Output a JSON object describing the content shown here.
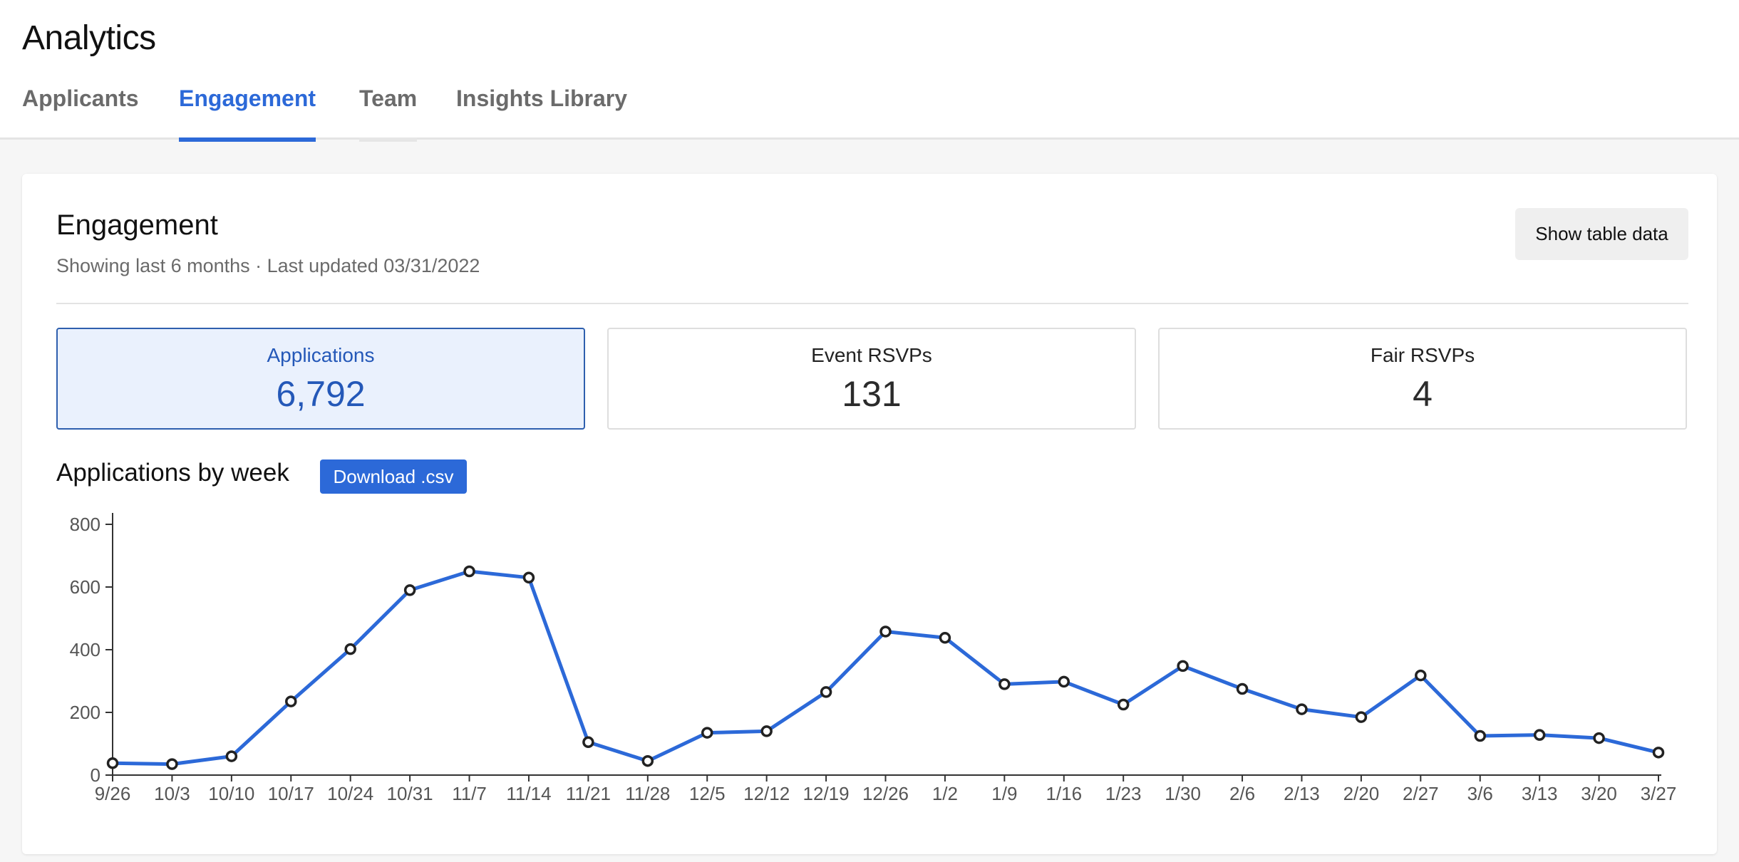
{
  "app": {
    "title": "Analytics"
  },
  "tabs": [
    {
      "label": "Applicants",
      "state": "default"
    },
    {
      "label": "Engagement",
      "state": "active"
    },
    {
      "label": "Team",
      "state": "hover"
    },
    {
      "label": "Insights Library",
      "state": "default"
    }
  ],
  "engagement": {
    "title": "Engagement",
    "subtitle": "Showing last 6 months · Last updated 03/31/2022",
    "show_table_label": "Show table data"
  },
  "stats": [
    {
      "label": "Applications",
      "value": "6,792",
      "selected": true
    },
    {
      "label": "Event RSVPs",
      "value": "131",
      "selected": false
    },
    {
      "label": "Fair RSVPs",
      "value": "4",
      "selected": false
    }
  ],
  "chart_section": {
    "title": "Applications by week",
    "download_label": "Download .csv"
  },
  "colors": {
    "accent": "#2c69d8",
    "line": "#2c69d8",
    "selected_card_bg": "#eaf1fd"
  },
  "chart_data": {
    "type": "line",
    "title": "Applications by week",
    "xlabel": "",
    "ylabel": "",
    "ylim": [
      0,
      800
    ],
    "yticks": [
      0,
      200,
      400,
      600,
      800
    ],
    "grid": false,
    "categories": [
      "9/26",
      "10/3",
      "10/10",
      "10/17",
      "10/24",
      "10/31",
      "11/7",
      "11/14",
      "11/21",
      "11/28",
      "12/5",
      "12/12",
      "12/19",
      "12/26",
      "1/2",
      "1/9",
      "1/16",
      "1/23",
      "1/30",
      "2/6",
      "2/13",
      "2/20",
      "2/27",
      "3/6",
      "3/13",
      "3/20",
      "3/27"
    ],
    "values": [
      38,
      35,
      60,
      235,
      402,
      590,
      650,
      630,
      105,
      45,
      135,
      140,
      265,
      458,
      438,
      290,
      298,
      225,
      348,
      275,
      210,
      185,
      318,
      125,
      128,
      118,
      72
    ]
  }
}
